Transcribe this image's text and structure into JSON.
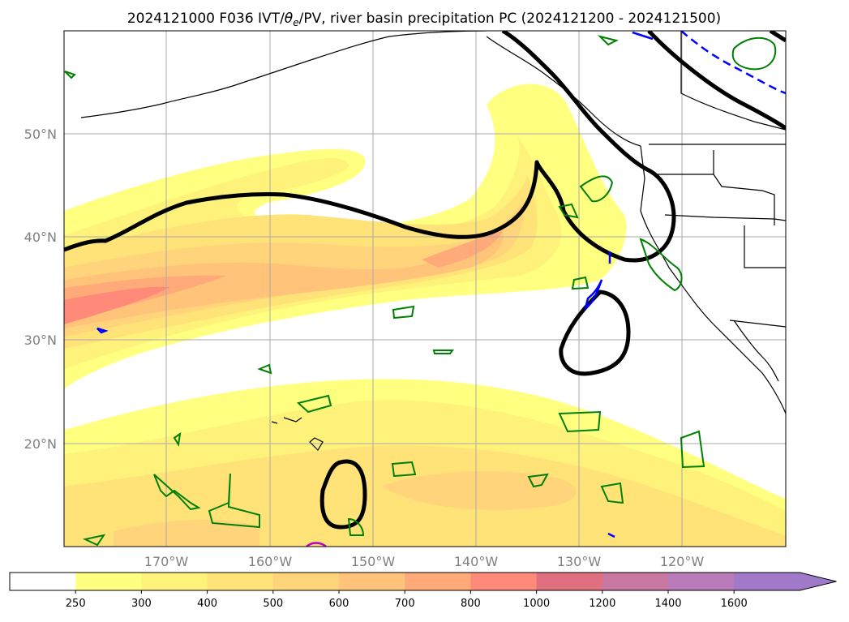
{
  "title": "2024121000 F036 IVT/θe/PV, river basin precipitation PC (2024121200 - 2024121500)",
  "title_parts": {
    "prefix": "2024121000 F036 IVT/",
    "theta": "θ",
    "sub": "e",
    "suffix": "/PV, river basin precipitation PC (2024121200 - 2024121500)"
  },
  "map": {
    "lat_labels": [
      "50°N",
      "40°N",
      "30°N",
      "20°N"
    ],
    "lon_labels": [
      "170°W",
      "160°W",
      "150°W",
      "140°W",
      "130°W",
      "120°W"
    ],
    "ocean_color": "#ffffff",
    "grid_color": "#aaaaaa"
  },
  "colorbar": {
    "ticks": [
      "250",
      "300",
      "400",
      "500",
      "600",
      "700",
      "800",
      "1000",
      "1200",
      "1400",
      "1600"
    ],
    "colors": [
      "#ffffff",
      "#ffff80",
      "#fff27a",
      "#ffe278",
      "#ffd47a",
      "#ffc47a",
      "#ffaa78",
      "#ff8a7a",
      "#e07080",
      "#c878a0",
      "#b87ab8",
      "#a07ac8"
    ],
    "extend": "max"
  },
  "contour_colors": {
    "pv": "#000000",
    "theta_e": "#0000ff",
    "precip": "#008000",
    "other": "#c000c0"
  }
}
